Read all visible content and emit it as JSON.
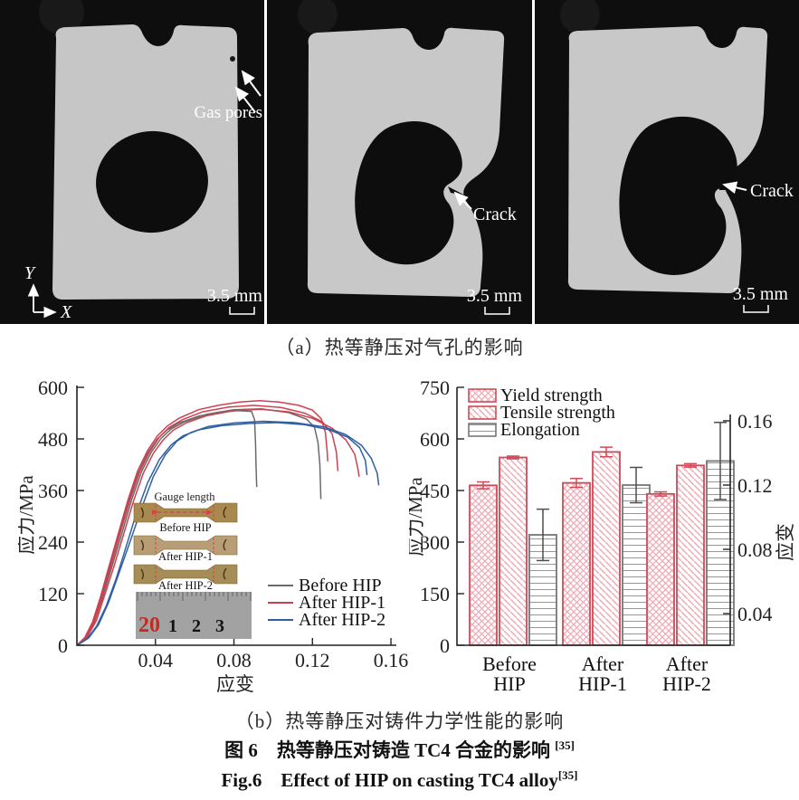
{
  "ct_panels": {
    "panel1": {
      "gas_pores_label": "Gas pores",
      "axis_y_label": "Y",
      "axis_x_label": "X",
      "scale_label": "3.5 mm"
    },
    "panel2": {
      "crack_label": "Crack",
      "scale_label": "3.5 mm"
    },
    "panel3": {
      "crack_label": "Crack",
      "scale_label": "3.5 mm"
    }
  },
  "captions": {
    "a": "（a）热等静压对气孔的影响",
    "b": "（b）热等静压对铸件力学性能的影响",
    "fig_cn": "图 6　热等静压对铸造 TC4 合金的影响 ",
    "fig_cn_ref": "[35]",
    "fig_en": "Fig.6　Effect of HIP on casting TC4 alloy",
    "fig_en_ref": "[35]"
  },
  "chart_data": [
    {
      "type": "line",
      "xlabel": "应变",
      "ylabel": "应力/MPa",
      "xlim": [
        0,
        0.16
      ],
      "ylim": [
        0,
        600
      ],
      "xticks": [
        0.04,
        0.08,
        0.12,
        0.16
      ],
      "yticks": [
        0,
        120,
        240,
        360,
        480,
        600
      ],
      "axes_color": "#222222",
      "legend": [
        {
          "label": "Before HIP",
          "color": "#6a6a6a"
        },
        {
          "label": "After HIP-1",
          "color": "#cf4150"
        },
        {
          "label": "After HIP-2",
          "color": "#2f5fa3"
        }
      ],
      "series": [
        {
          "name": "Before HIP",
          "color": "#6a6a6a",
          "points": [
            [
              0,
              0
            ],
            [
              0.004,
              15
            ],
            [
              0.008,
              50
            ],
            [
              0.012,
              105
            ],
            [
              0.016,
              170
            ],
            [
              0.021,
              250
            ],
            [
              0.026,
              330
            ],
            [
              0.031,
              398
            ],
            [
              0.036,
              447
            ],
            [
              0.041,
              480
            ],
            [
              0.046,
              501
            ],
            [
              0.052,
              517
            ],
            [
              0.062,
              533
            ],
            [
              0.072,
              542
            ],
            [
              0.082,
              546
            ],
            [
              0.089,
              544
            ],
            [
              0.0905,
              525
            ],
            [
              0.091,
              470
            ],
            [
              0.0913,
              415
            ],
            [
              0.0916,
              368
            ]
          ]
        },
        {
          "name": "Before HIP",
          "color": "#6a6a6a",
          "points": [
            [
              0,
              0
            ],
            [
              0.005,
              18
            ],
            [
              0.009,
              55
            ],
            [
              0.013,
              110
            ],
            [
              0.018,
              185
            ],
            [
              0.023,
              262
            ],
            [
              0.028,
              340
            ],
            [
              0.033,
              405
            ],
            [
              0.038,
              450
            ],
            [
              0.043,
              482
            ],
            [
              0.048,
              503
            ],
            [
              0.055,
              520
            ],
            [
              0.066,
              537
            ],
            [
              0.08,
              548
            ],
            [
              0.094,
              550
            ],
            [
              0.108,
              541
            ],
            [
              0.117,
              526
            ],
            [
              0.121,
              508
            ],
            [
              0.1228,
              472
            ],
            [
              0.1238,
              420
            ],
            [
              0.1243,
              340
            ]
          ]
        },
        {
          "name": "After HIP-1",
          "color": "#cf4150",
          "points": [
            [
              0,
              0
            ],
            [
              0.004,
              18
            ],
            [
              0.008,
              55
            ],
            [
              0.012,
              112
            ],
            [
              0.016,
              178
            ],
            [
              0.021,
              258
            ],
            [
              0.026,
              338
            ],
            [
              0.031,
              406
            ],
            [
              0.036,
              453
            ],
            [
              0.041,
              487
            ],
            [
              0.046,
              510
            ],
            [
              0.052,
              528
            ],
            [
              0.062,
              548
            ],
            [
              0.072,
              558
            ],
            [
              0.083,
              566
            ],
            [
              0.093,
              569
            ],
            [
              0.103,
              566
            ],
            [
              0.113,
              558
            ],
            [
              0.12,
              547
            ],
            [
              0.1245,
              527
            ],
            [
              0.1266,
              495
            ],
            [
              0.1275,
              452
            ],
            [
              0.1278,
              428
            ]
          ]
        },
        {
          "name": "After HIP-1",
          "color": "#cf4150",
          "points": [
            [
              0,
              0
            ],
            [
              0.005,
              20
            ],
            [
              0.009,
              58
            ],
            [
              0.013,
              113
            ],
            [
              0.017,
              180
            ],
            [
              0.022,
              260
            ],
            [
              0.027,
              338
            ],
            [
              0.032,
              404
            ],
            [
              0.037,
              450
            ],
            [
              0.042,
              484
            ],
            [
              0.047,
              507
            ],
            [
              0.054,
              525
            ],
            [
              0.064,
              543
            ],
            [
              0.077,
              554
            ],
            [
              0.09,
              558
            ],
            [
              0.104,
              553
            ],
            [
              0.116,
              540
            ],
            [
              0.125,
              520
            ],
            [
              0.13,
              492
            ],
            [
              0.1322,
              450
            ],
            [
              0.133,
              405
            ]
          ]
        },
        {
          "name": "After HIP-1",
          "color": "#cf4150",
          "points": [
            [
              0,
              0
            ],
            [
              0.005,
              17
            ],
            [
              0.01,
              58
            ],
            [
              0.014,
              115
            ],
            [
              0.019,
              185
            ],
            [
              0.024,
              262
            ],
            [
              0.029,
              338
            ],
            [
              0.034,
              402
            ],
            [
              0.039,
              447
            ],
            [
              0.044,
              478
            ],
            [
              0.049,
              500
            ],
            [
              0.056,
              518
            ],
            [
              0.066,
              534
            ],
            [
              0.08,
              546
            ],
            [
              0.094,
              549
            ],
            [
              0.108,
              543
            ],
            [
              0.12,
              528
            ],
            [
              0.13,
              505
            ],
            [
              0.137,
              478
            ],
            [
              0.1415,
              445
            ],
            [
              0.1432,
              410
            ],
            [
              0.1438,
              392
            ]
          ]
        },
        {
          "name": "After HIP-2",
          "color": "#2f5fa3",
          "points": [
            [
              0,
              0
            ],
            [
              0.005,
              14
            ],
            [
              0.01,
              44
            ],
            [
              0.015,
              92
            ],
            [
              0.02,
              155
            ],
            [
              0.025,
              228
            ],
            [
              0.03,
              303
            ],
            [
              0.036,
              378
            ],
            [
              0.042,
              432
            ],
            [
              0.048,
              466
            ],
            [
              0.054,
              487
            ],
            [
              0.062,
              501
            ],
            [
              0.074,
              511
            ],
            [
              0.088,
              516
            ],
            [
              0.102,
              518
            ],
            [
              0.116,
              513
            ],
            [
              0.128,
              502
            ],
            [
              0.138,
              484
            ],
            [
              0.144,
              460
            ],
            [
              0.147,
              430
            ],
            [
              0.1478,
              396
            ]
          ]
        },
        {
          "name": "After HIP-2",
          "color": "#2f5fa3",
          "points": [
            [
              0,
              0
            ],
            [
              0.006,
              17
            ],
            [
              0.011,
              48
            ],
            [
              0.016,
              98
            ],
            [
              0.021,
              162
            ],
            [
              0.027,
              240
            ],
            [
              0.033,
              320
            ],
            [
              0.039,
              393
            ],
            [
              0.045,
              443
            ],
            [
              0.051,
              475
            ],
            [
              0.058,
              495
            ],
            [
              0.067,
              509
            ],
            [
              0.08,
              517
            ],
            [
              0.095,
              521
            ],
            [
              0.111,
              518
            ],
            [
              0.126,
              508
            ],
            [
              0.137,
              490
            ],
            [
              0.145,
              465
            ],
            [
              0.15,
              435
            ],
            [
              0.153,
              400
            ],
            [
              0.1538,
              372
            ]
          ]
        }
      ],
      "inset": {
        "gauge_label": "Gauge length",
        "specimen_labels": [
          "Before HIP",
          "After HIP-1",
          "After HIP-2"
        ],
        "specimen_colors": [
          "#a8894f",
          "#b79e77",
          "#a58d58"
        ],
        "ruler_numbers": [
          "20",
          "1",
          "2",
          "3"
        ],
        "ruler_number_colors": [
          "#c42a1f",
          "#111111",
          "#111111",
          "#111111"
        ]
      }
    },
    {
      "type": "bar",
      "categories": [
        [
          "Before",
          "HIP"
        ],
        [
          "After",
          "HIP-1"
        ],
        [
          "After",
          "HIP-2"
        ]
      ],
      "ylabel_left": "应力/MPa",
      "ylabel_right": "应变",
      "ylim_left": [
        0,
        750
      ],
      "yticks_left": [
        0,
        150,
        300,
        450,
        600,
        750
      ],
      "yticks_right": [
        0.04,
        0.08,
        0.12,
        0.16
      ],
      "axes_color": "#222222",
      "series": [
        {
          "name": "Yield strength",
          "axis": "left",
          "pattern": "crosshatch",
          "edge": "#cf4a57",
          "hatch": "#efaab4",
          "values": [
            465,
            472,
            440
          ],
          "errors": [
            10,
            13,
            6
          ]
        },
        {
          "name": "Tensile strength",
          "axis": "left",
          "pattern": "diagonal",
          "edge": "#cf4a57",
          "hatch": "#efaab4",
          "values": [
            546,
            562,
            523
          ],
          "errors": [
            4,
            14,
            5
          ]
        },
        {
          "name": "Elongation",
          "axis": "right",
          "pattern": "hlines",
          "edge": "#767676",
          "hatch": "#979797",
          "error_color": "#4d4d4d",
          "values": [
            0.089,
            0.12,
            0.135
          ],
          "errors": [
            0.016,
            0.011,
            0.024
          ]
        }
      ]
    }
  ]
}
